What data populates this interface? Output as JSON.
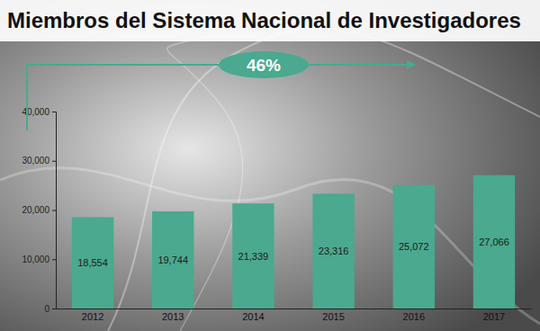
{
  "chart_data": {
    "type": "bar",
    "title": "Miembros del Sistema Nacional de Investigadores",
    "categories": [
      "2012",
      "2013",
      "2014",
      "2015",
      "2016",
      "2017"
    ],
    "values": [
      18554,
      19744,
      21339,
      23316,
      25072,
      27066
    ],
    "value_labels": [
      "18,554",
      "19,744",
      "21,339",
      "23,316",
      "25,072",
      "27,066"
    ],
    "data_labels": true,
    "color": "#4aa98f",
    "ylim": [
      0,
      40000
    ],
    "yticks": [
      0,
      {
        "value": 10000,
        "label": "10,000"
      },
      {
        "value": 20000,
        "label": "20,000"
      },
      {
        "value": 30000,
        "label": "30,000"
      },
      {
        "value": 40000,
        "label": "40,000"
      }
    ],
    "annotations": [
      "46%"
    ]
  }
}
